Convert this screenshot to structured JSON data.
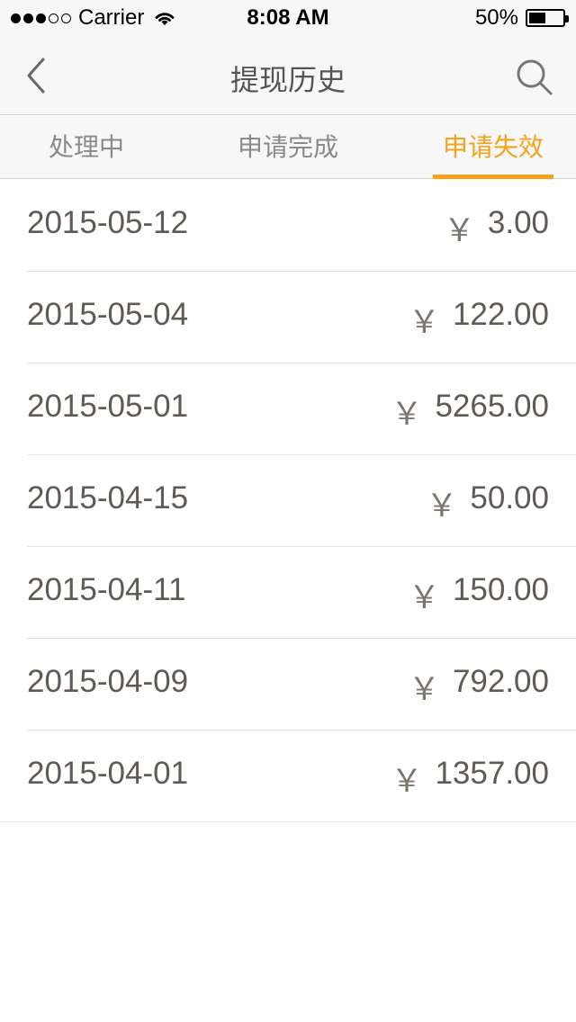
{
  "status_bar": {
    "carrier": "Carrier",
    "time": "8:08 AM",
    "battery": "50%",
    "battery_level": 0.5,
    "signal_bars_filled": 3,
    "signal_bars_total": 5
  },
  "nav": {
    "title": "提现历史",
    "back_icon": "chevron-left-icon",
    "search_icon": "search-icon"
  },
  "tabs": [
    {
      "label": "处理中",
      "active": false
    },
    {
      "label": "申请完成",
      "active": false
    },
    {
      "label": "申请失效",
      "active": true
    }
  ],
  "accent_color": "#f5a21b",
  "currency_symbol": "￥",
  "records": [
    {
      "date": "2015-05-12",
      "amount": "3.00"
    },
    {
      "date": "2015-05-04",
      "amount": "122.00"
    },
    {
      "date": "2015-05-01",
      "amount": "5265.00"
    },
    {
      "date": "2015-04-15",
      "amount": "50.00"
    },
    {
      "date": "2015-04-11",
      "amount": "150.00"
    },
    {
      "date": "2015-04-09",
      "amount": "792.00"
    },
    {
      "date": "2015-04-01",
      "amount": "1357.00"
    }
  ]
}
